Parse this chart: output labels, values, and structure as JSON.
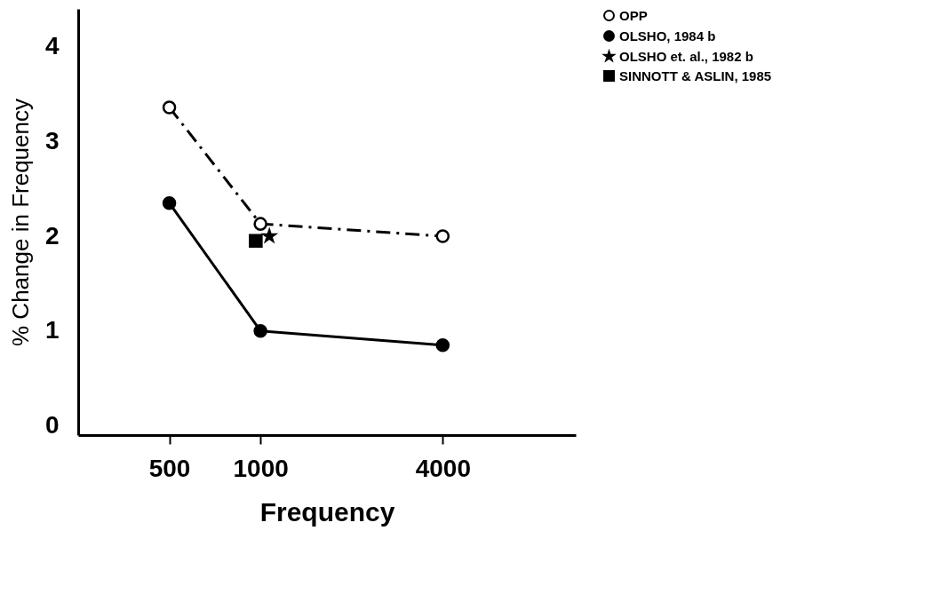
{
  "chart_data": {
    "type": "line",
    "xlabel": "Frequency",
    "ylabel": "% Change in Frequency",
    "log": "x",
    "xlim": [
      250,
      11000
    ],
    "xticks": [
      500,
      1000,
      4000
    ],
    "ylim": [
      -0.1,
      4.4
    ],
    "yticks": [
      0,
      1,
      2,
      3,
      4
    ],
    "grid": false,
    "legend": "top right",
    "series": [
      {
        "name": "OPP",
        "color": "#000000",
        "x": [
          500,
          1000,
          4000
        ],
        "values": [
          3.36,
          2.13,
          2.0
        ],
        "marker": "circle-open",
        "line_style": "dashdot"
      },
      {
        "name": "OLSHO, 1984 b",
        "color": "#000000",
        "x": [
          500,
          1000,
          4000
        ],
        "values": [
          2.35,
          1.0,
          0.85
        ],
        "marker": "circle",
        "line_style": "solid"
      },
      {
        "name": "OLSHO et. al., 1982 b",
        "type": "scatter",
        "color": "#000000",
        "x": [
          1070
        ],
        "values": [
          2.0
        ],
        "marker": "star"
      },
      {
        "name": "SINNOTT & ASLIN, 1985",
        "type": "scatter",
        "color": "#000000",
        "x": [
          965
        ],
        "values": [
          1.95
        ],
        "marker": "square"
      }
    ]
  }
}
